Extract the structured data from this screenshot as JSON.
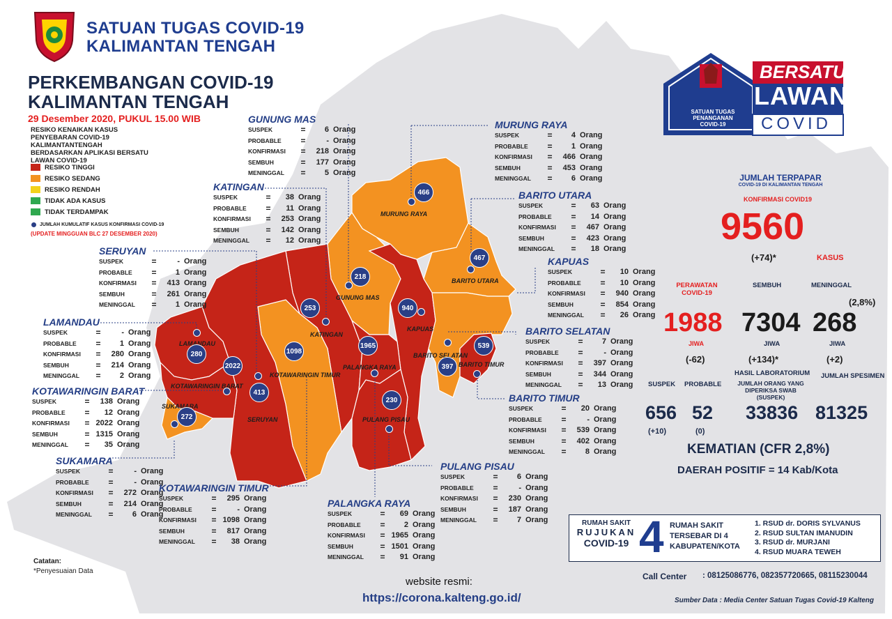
{
  "header": {
    "org_line1": "SATUAN TUGAS COVID-19",
    "org_line2": "KALIMANTAN TENGAH",
    "title_line1": "PERKEMBANGAN COVID-19",
    "title_line2": "KALIMANTAN TENGAH",
    "date": "29 Desember 2020, PUKUL 15.00 WIB"
  },
  "legend": {
    "heading": "RESIKO KENAIKAN KASUS PENYEBARAN COVID-19 KALIMANTANTENGAH BERDASARKAN APLIKASI BERSATU LAWAN COVID-19",
    "items": [
      {
        "label": "RESIKO TINGGI",
        "color": "#c52418"
      },
      {
        "label": "RESIKO SEDANG",
        "color": "#f39221"
      },
      {
        "label": "RESIKO RENDAH",
        "color": "#f3d21b"
      },
      {
        "label": "TIDAK ADA KASUS",
        "color": "#2fa84f"
      },
      {
        "label": "TIDAK TERDAMPAK",
        "color": "#2fa84f"
      }
    ],
    "dot_note": "JUMLAH KUMULATIF KASUS KONFIRMASI COVID-19",
    "update_note": "(UPDATE MINGGUAN BLC 27 DESEMBER 2020)"
  },
  "stat_labels": {
    "suspek": "SUSPEK",
    "probable": "PROBABLE",
    "konfirmasi": "KONFIRMASI",
    "sembuh": "SEMBUH",
    "meninggal": "MENINGGAL",
    "eq": "=",
    "unit": "Orang"
  },
  "regions": {
    "gunung_mas": {
      "name": "GUNUNG MAS",
      "map_label": "GUNUNG MAS",
      "bubble": "218",
      "suspek": "6",
      "probable": "-",
      "konfirmasi": "218",
      "sembuh": "177",
      "meninggal": "5"
    },
    "murung_raya": {
      "name": "MURUNG RAYA",
      "map_label": "MURUNG RAYA",
      "bubble": "466",
      "suspek": "4",
      "probable": "1",
      "konfirmasi": "466",
      "sembuh": "453",
      "meninggal": "6"
    },
    "katingan": {
      "name": "KATINGAN",
      "map_label": "KATINGAN",
      "bubble": "253",
      "suspek": "38",
      "probable": "11",
      "konfirmasi": "253",
      "sembuh": "142",
      "meninggal": "12"
    },
    "barito_utara": {
      "name": "BARITO UTARA",
      "map_label": "BARITO UTARA",
      "bubble": "467",
      "suspek": "63",
      "probable": "14",
      "konfirmasi": "467",
      "sembuh": "423",
      "meninggal": "18"
    },
    "seruyan": {
      "name": "SERUYAN",
      "map_label": "SERUYAN",
      "bubble": "413",
      "suspek": "-",
      "probable": "1",
      "konfirmasi": "413",
      "sembuh": "261",
      "meninggal": "1"
    },
    "kapuas": {
      "name": "KAPUAS",
      "map_label": "KAPUAS",
      "bubble": "940",
      "suspek": "10",
      "probable": "10",
      "konfirmasi": "940",
      "sembuh": "854",
      "meninggal": "26"
    },
    "lamandau": {
      "name": "LAMANDAU",
      "map_label": "LAMANDAU",
      "bubble": "280",
      "suspek": "-",
      "probable": "1",
      "konfirmasi": "280",
      "sembuh": "214",
      "meninggal": "2"
    },
    "barito_selatan": {
      "name": "BARITO SELATAN",
      "map_label": "BARITO SELATAN",
      "bubble": "397",
      "suspek": "7",
      "probable": "-",
      "konfirmasi": "397",
      "sembuh": "344",
      "meninggal": "13"
    },
    "kotawaringin_barat": {
      "name": "KOTAWARINGIN BARAT",
      "map_label": "KOTAWARINGIN BARAT",
      "bubble": "2022",
      "suspek": "138",
      "probable": "12",
      "konfirmasi": "2022",
      "sembuh": "1315",
      "meninggal": "35"
    },
    "barito_timur": {
      "name": "BARITO TIMUR",
      "map_label": "BARITO TIMUR",
      "bubble": "539",
      "suspek": "20",
      "probable": "-",
      "konfirmasi": "539",
      "sembuh": "402",
      "meninggal": "8"
    },
    "sukamara": {
      "name": "SUKAMARA",
      "map_label": "SUKAMARA",
      "bubble": "272",
      "suspek": "-",
      "probable": "-",
      "konfirmasi": "272",
      "sembuh": "214",
      "meninggal": "6"
    },
    "kotawaringin_timur": {
      "name": "KOTAWARINGIN TIMUR",
      "map_label": "KOTAWARINGIN TIMUR",
      "bubble": "1098",
      "suspek": "295",
      "probable": "-",
      "konfirmasi": "1098",
      "sembuh": "817",
      "meninggal": "38"
    },
    "palangka_raya": {
      "name": "PALANGKA RAYA",
      "map_label": "PALANGKA RAYA",
      "bubble": "1965",
      "suspek": "69",
      "probable": "2",
      "konfirmasi": "1965",
      "sembuh": "1501",
      "meninggal": "91"
    },
    "pulang_pisau": {
      "name": "PULANG PISAU",
      "map_label": "PULANG PISAU",
      "bubble": "230",
      "suspek": "6",
      "probable": "-",
      "konfirmasi": "230",
      "sembuh": "187",
      "meninggal": "7"
    }
  },
  "campaign": {
    "line1": "BERSATU",
    "line2": "LAWAN",
    "line3": "COVID",
    "sub1": "SATUAN TUGAS",
    "sub2": "PENANGANAN",
    "sub3": "COVID-19"
  },
  "summary": {
    "jumlah_terpapar": "JUMLAH TERPAPAR",
    "jumlah_sub": "COVID-19 DI KALIMANTAN TENGAH",
    "konfirmasi_label": "KONFIRMASI COVID19",
    "konfirmasi_value": "9560",
    "konfirmasi_delta": "(+74)*",
    "kasus": "KASUS",
    "perawatan_label": "PERAWATAN COVID-19",
    "sembuh_label": "SEMBUH",
    "meninggal_label": "MENINGGAL",
    "meninggal_pct": "(2,8%)",
    "perawatan_value": "1988",
    "sembuh_value": "7304",
    "meninggal_value": "268",
    "jiwa": "JIWA",
    "perawatan_delta": "(-62)",
    "sembuh_delta": "(+134)*",
    "meninggal_delta": "(+2)",
    "suspek_label": "SUSPEK",
    "probable_label": "PROBABLE",
    "lab_label": "HASIL LABORATORIUM",
    "swab_label": "JUMLAH ORANG YANG DIPERIKSA SWAB (SUSPEK)",
    "spesimen_label": "JUMLAH SPESIMEN",
    "suspek_value": "656",
    "probable_value": "52",
    "swab_value": "33836",
    "spesimen_value": "81325",
    "suspek_delta": "(+10)",
    "probable_delta": "(0)",
    "cfr": "KEMATIAN (CFR 2,8%)",
    "daerah": "DAERAH POSITIF = 14 Kab/Kota"
  },
  "rumah_sakit": {
    "left1": "RUMAH SAKIT",
    "left2": "RUJUKAN",
    "left3": "COVID-19",
    "count": "4",
    "mid1": "RUMAH SAKIT",
    "mid2": "TERSEBAR DI 4",
    "mid3": "KABUPATEN/KOTA",
    "list": [
      "1. RSUD dr. DORIS SYLVANUS",
      "2. RSUD SULTAN IMANUDIN",
      "3. RSUD dr. MURJANI",
      "4. RSUD MUARA TEWEH"
    ]
  },
  "call_center": {
    "label": "Call Center",
    "numbers": ": 08125086776, 082357720665, 08115230044"
  },
  "source": "Sumber Data : Media Center Satuan Tugas Covid-19 Kalteng",
  "footer": {
    "website_label": "website resmi:",
    "url": "https://corona.kalteng.go.id/",
    "catatan": "Catatan:",
    "catatan_note": "*Penyesuaian Data"
  }
}
